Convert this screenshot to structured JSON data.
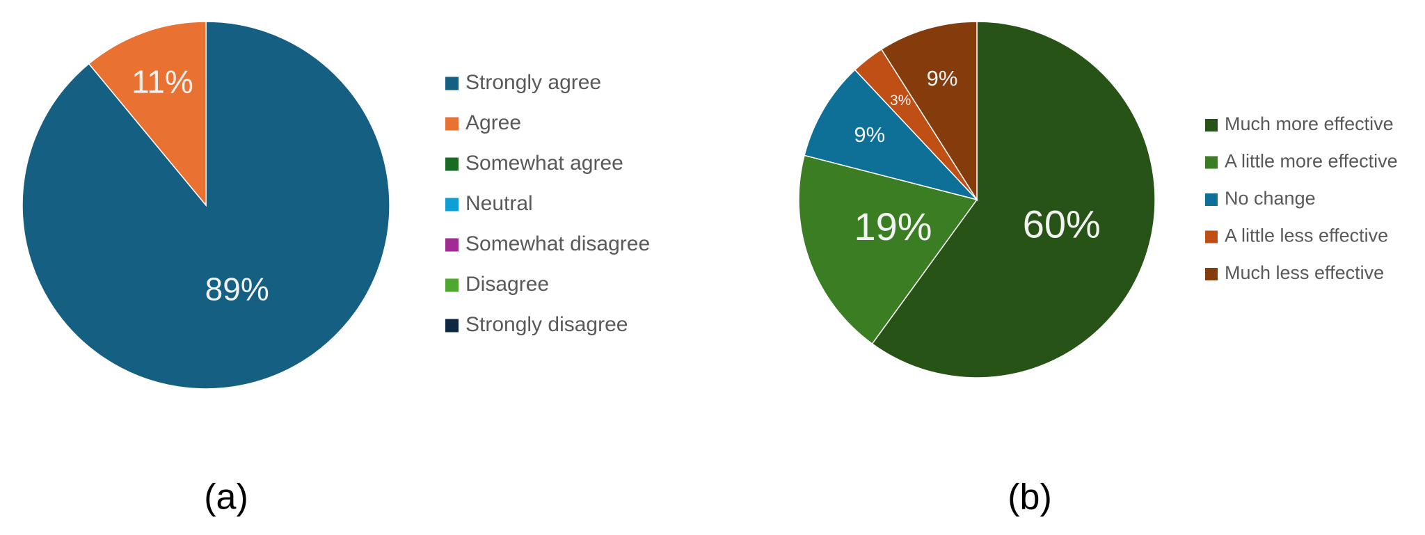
{
  "chart_data": [
    {
      "type": "pie",
      "caption": "(a)",
      "categories": [
        "Strongly agree",
        "Agree",
        "Somewhat agree",
        "Neutral",
        "Somewhat disagree",
        "Disagree",
        "Strongly disagree"
      ],
      "values": [
        89,
        11,
        0,
        0,
        0,
        0,
        0
      ],
      "value_labels": [
        "89%",
        "11%",
        null,
        null,
        null,
        null,
        null
      ],
      "colors": [
        "#156082",
        "#e97132",
        "#196b24",
        "#0f9ed5",
        "#a02b93",
        "#4ea72e",
        "#0e2841"
      ]
    },
    {
      "type": "pie",
      "caption": "(b)",
      "categories": [
        "Much more effective",
        "A little more effective",
        "No change",
        "A little less effective",
        "Much less effective"
      ],
      "values": [
        60,
        19,
        9,
        3,
        9
      ],
      "value_labels": [
        "60%",
        "19%",
        "9%",
        "3%",
        "9%"
      ],
      "colors": [
        "#275317",
        "#3b7d23",
        "#0e7097",
        "#c04f15",
        "#843c0c"
      ]
    }
  ]
}
